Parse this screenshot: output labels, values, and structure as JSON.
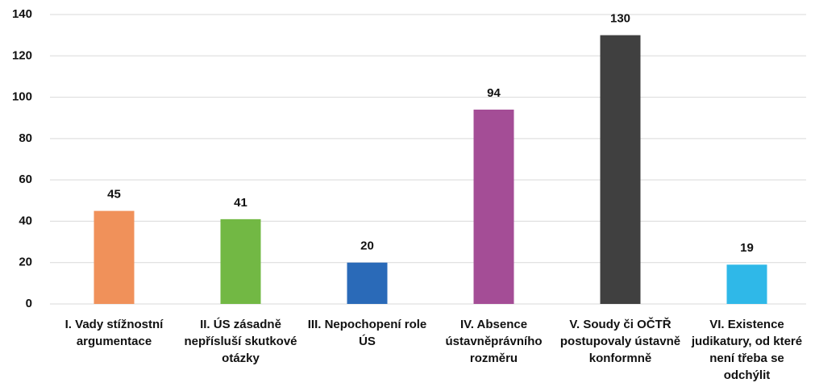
{
  "chart_data": {
    "type": "bar",
    "categories": [
      "I. Vady stížnostní argumentace",
      "II. ÚS zásadně nepřísluší skutkové otázky",
      "III. Nepochopení role ÚS",
      "IV. Absence ústavněprávního rozměru",
      "V. Soudy či OČTŘ postupovaly ústavně konformně",
      "VI. Existence judikatury, od které není třeba se odchýlit"
    ],
    "values": [
      45,
      41,
      20,
      94,
      130,
      19
    ],
    "colors": [
      "#f0915a",
      "#72b844",
      "#2a6ab8",
      "#a44d96",
      "#404040",
      "#2fb8e8"
    ],
    "ylim": [
      0,
      140
    ],
    "yticks": [
      0,
      20,
      40,
      60,
      80,
      100,
      120,
      140
    ],
    "grid": true
  }
}
